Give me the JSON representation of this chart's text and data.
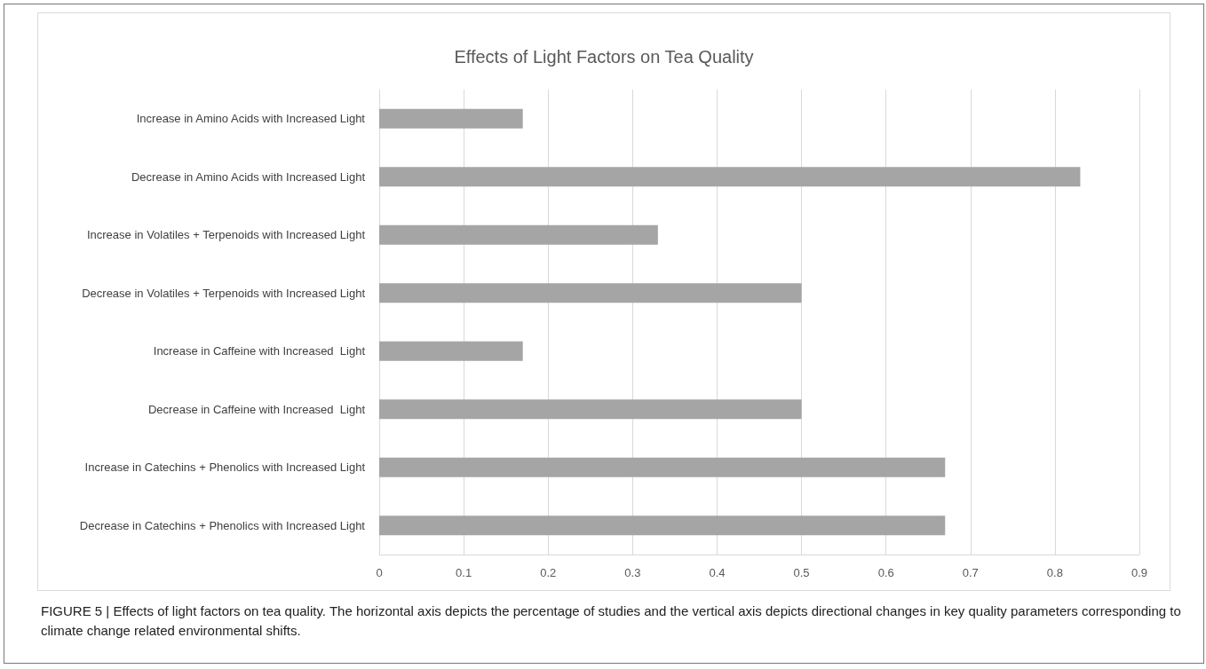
{
  "chart_data": {
    "type": "bar",
    "orientation": "horizontal",
    "title": "Effects of Light Factors on Tea Quality",
    "categories": [
      "Increase in Amino Acids with Increased Light",
      "Decrease in Amino Acids with Increased Light",
      "Increase in Volatiles + Terpenoids with Increased Light",
      "Decrease in Volatiles + Terpenoids with Increased Light",
      "Increase in Caffeine with Increased  Light",
      "Decrease in Caffeine with Increased  Light",
      "Increase in Catechins + Phenolics with Increased Light",
      "Decrease in Catechins + Phenolics with Increased Light"
    ],
    "values": [
      0.17,
      0.83,
      0.33,
      0.5,
      0.17,
      0.5,
      0.67,
      0.67
    ],
    "color": "#a5a5a5",
    "xlim": [
      0,
      0.9
    ],
    "xticks": [
      0,
      0.1,
      0.2,
      0.3,
      0.4,
      0.5,
      0.6,
      0.7,
      0.8,
      0.9
    ],
    "grid": "x",
    "annotations": [
      "FIGURE 5 | Effects of light factors on tea quality. The horizontal axis depicts the percentage of studies and the vertical axis depicts directional changes in key quality parameters corresponding to climate change related environmental shifts."
    ]
  }
}
